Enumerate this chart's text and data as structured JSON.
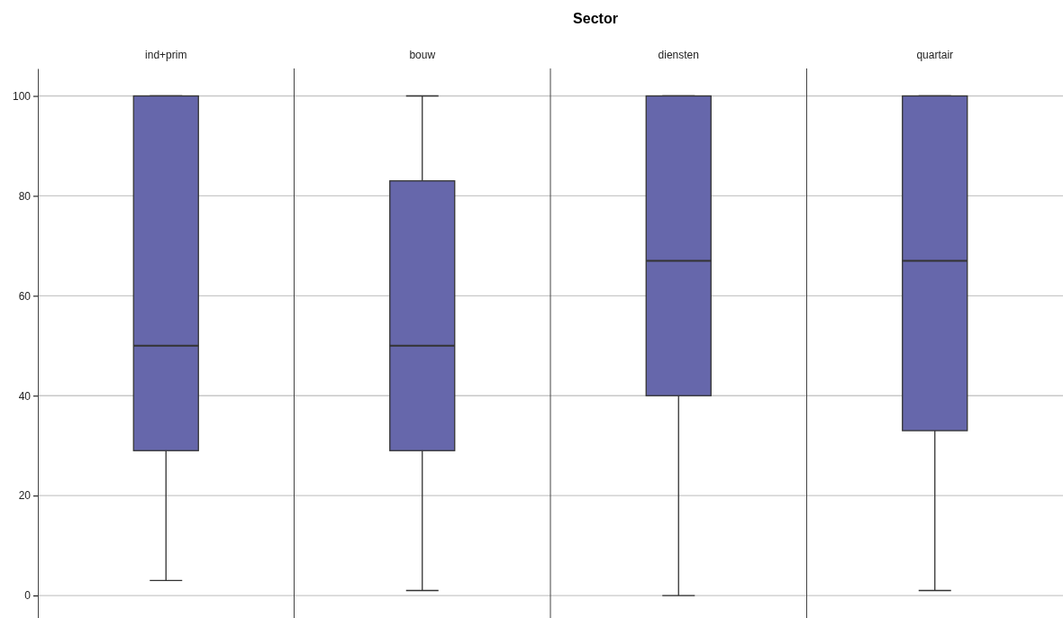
{
  "chart_data": {
    "type": "box",
    "title": "Sector",
    "categories": [
      "ind+prim",
      "bouw",
      "diensten",
      "quartair"
    ],
    "color": "#6667ab",
    "boxes": [
      {
        "low": 3,
        "q1": 29,
        "median": 50,
        "q3": 100,
        "high": 100
      },
      {
        "low": 1,
        "q1": 29,
        "median": 50,
        "q3": 83,
        "high": 100
      },
      {
        "low": 0,
        "q1": 40,
        "median": 67,
        "q3": 100,
        "high": 100
      },
      {
        "low": 1,
        "q1": 33,
        "median": 67,
        "q3": 100,
        "high": 100
      }
    ],
    "ylim": [
      -4.5,
      105.5
    ],
    "yticks": [
      0,
      20,
      40,
      60,
      80,
      100
    ],
    "grid": "y"
  }
}
